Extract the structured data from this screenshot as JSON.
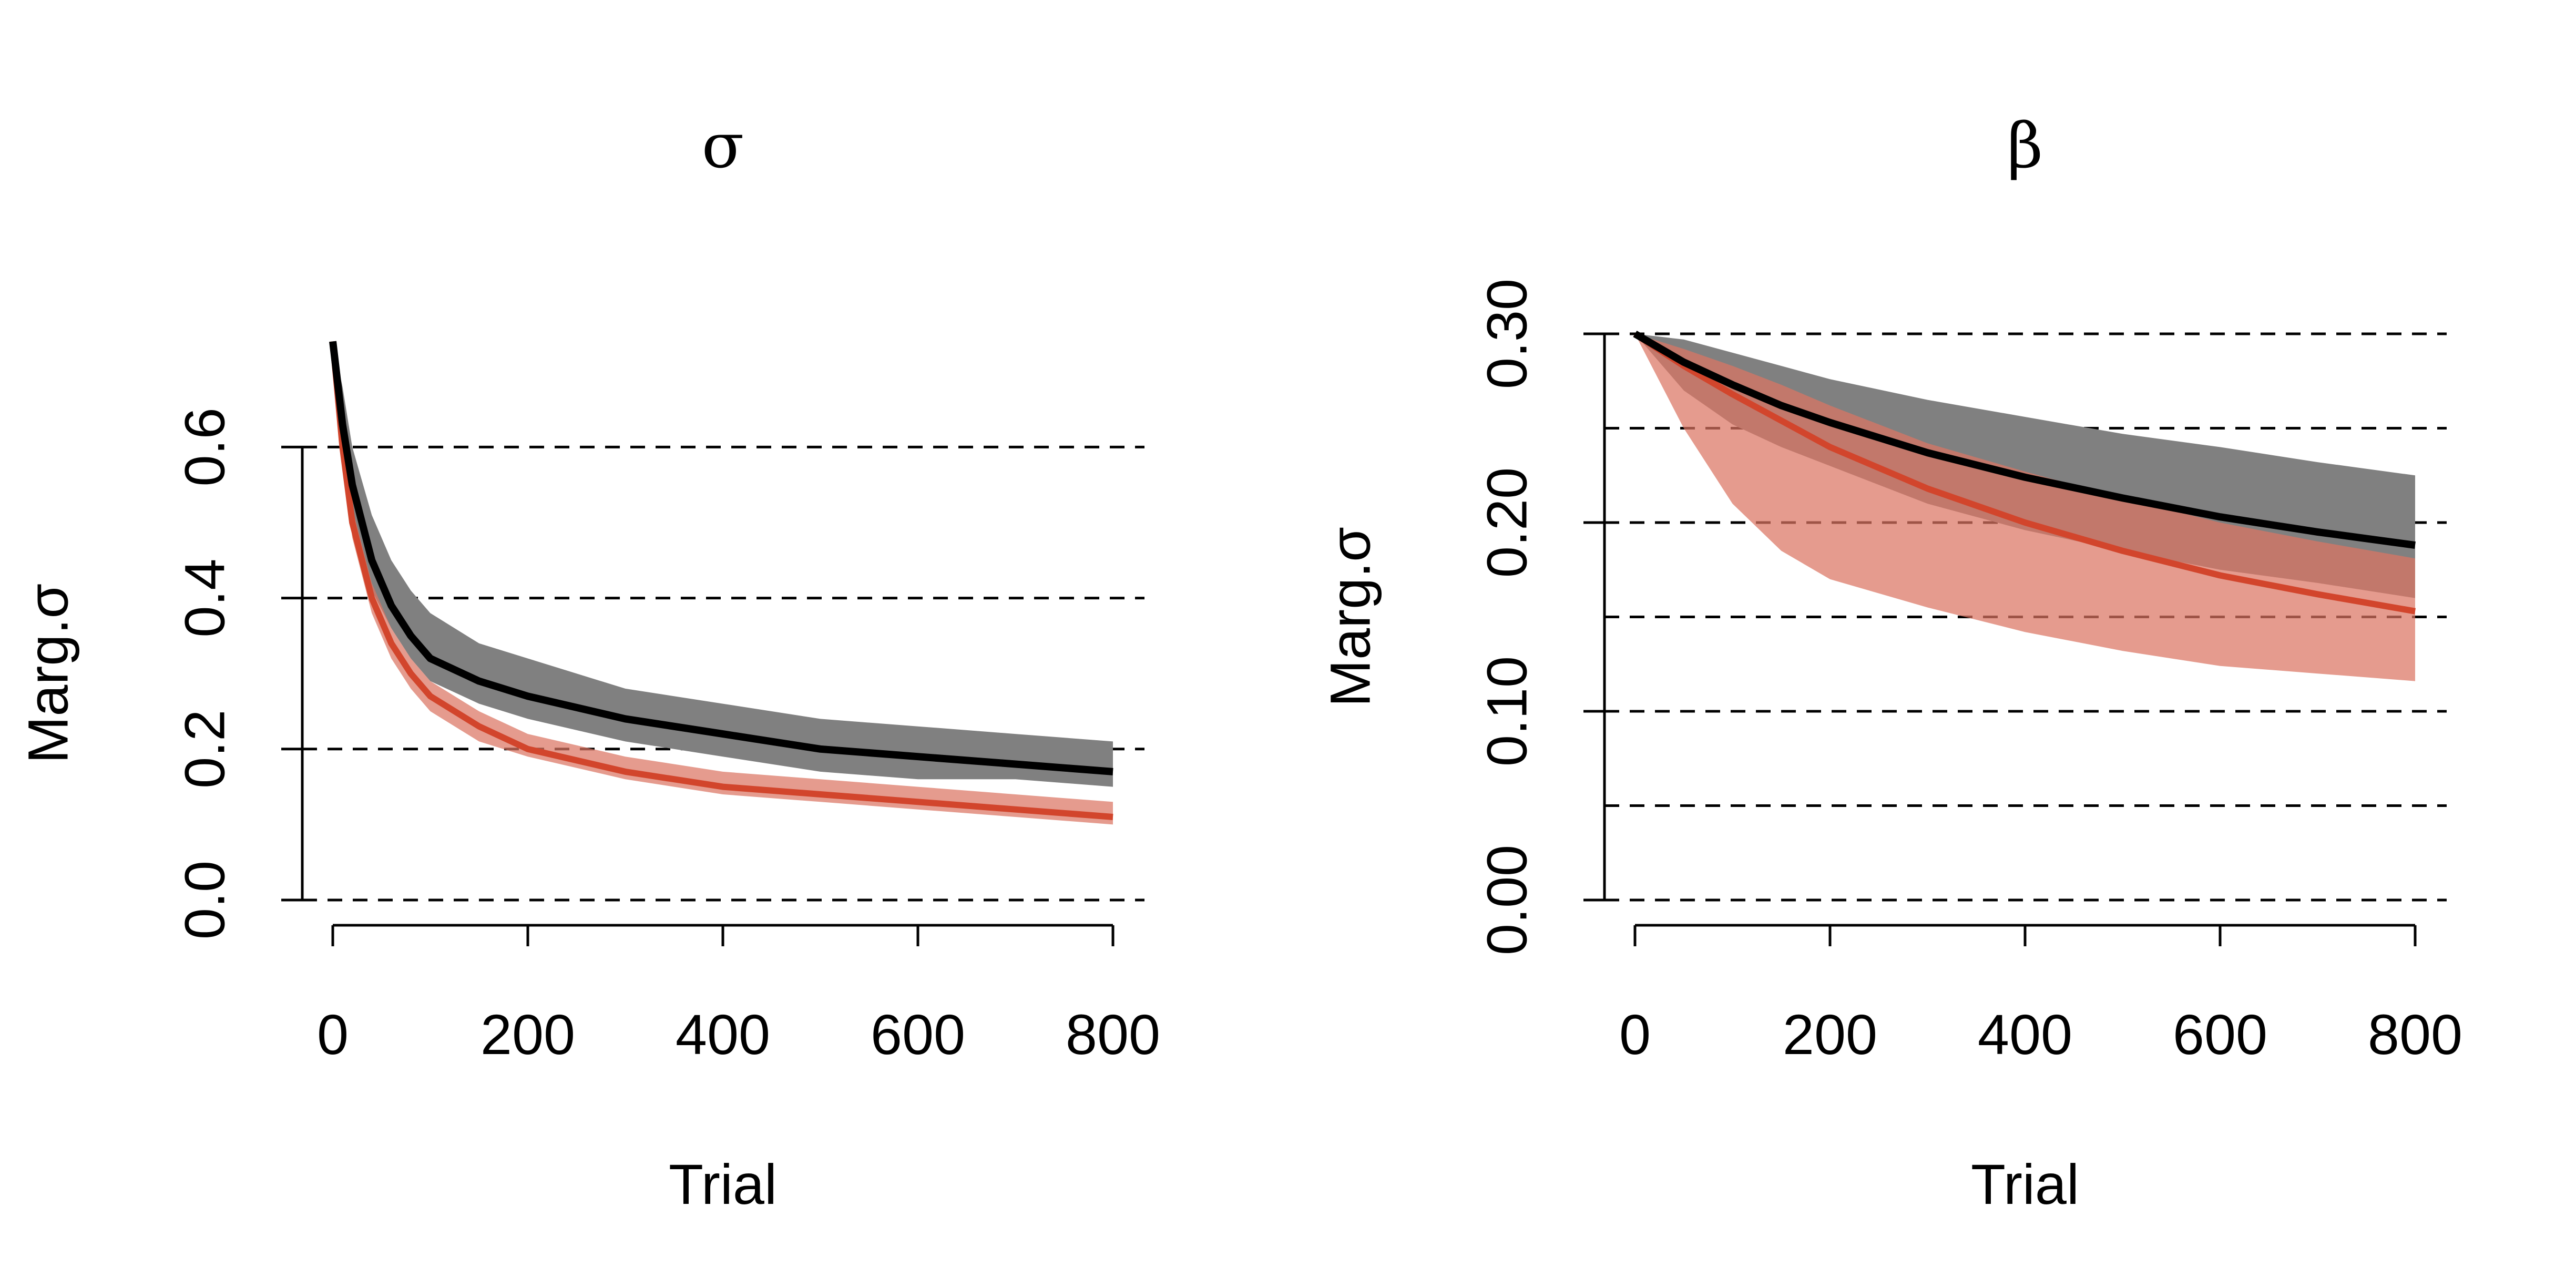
{
  "chart_data": [
    {
      "type": "line",
      "title": "σ",
      "xlabel": "Trial",
      "ylabel": "Marg.σ",
      "xlim": [
        0,
        800
      ],
      "ylim": [
        0,
        0.75
      ],
      "xticks": [
        0,
        200,
        400,
        600,
        800
      ],
      "xtick_labels": [
        "0",
        "200",
        "400",
        "600",
        "800"
      ],
      "yticks": [
        0,
        0.2,
        0.4,
        0.6
      ],
      "ytick_labels": [
        "0.0",
        "0.2",
        "0.4",
        "0.6"
      ],
      "reference_lines": [
        0,
        0.2,
        0.4,
        0.6
      ],
      "grid": false,
      "legend": "none",
      "x": [
        0,
        10,
        20,
        40,
        60,
        80,
        100,
        150,
        200,
        300,
        400,
        500,
        600,
        700,
        800
      ],
      "series": [
        {
          "color": "#000000",
          "band_color": "#808080",
          "values": [
            0.74,
            0.63,
            0.55,
            0.45,
            0.39,
            0.35,
            0.32,
            0.29,
            0.27,
            0.24,
            0.22,
            0.2,
            0.19,
            0.18,
            0.17
          ],
          "upper": [
            0.74,
            0.68,
            0.6,
            0.51,
            0.45,
            0.41,
            0.38,
            0.34,
            0.32,
            0.28,
            0.26,
            0.24,
            0.23,
            0.22,
            0.21
          ],
          "lower": [
            0.74,
            0.6,
            0.51,
            0.41,
            0.36,
            0.32,
            0.29,
            0.26,
            0.24,
            0.21,
            0.19,
            0.17,
            0.16,
            0.16,
            0.15
          ]
        },
        {
          "color": "#D2452C",
          "band_color": "#DB7463",
          "values": [
            0.74,
            0.6,
            0.5,
            0.4,
            0.34,
            0.3,
            0.27,
            0.23,
            0.2,
            0.17,
            0.15,
            0.14,
            0.13,
            0.12,
            0.11
          ],
          "upper": [
            0.74,
            0.61,
            0.52,
            0.42,
            0.36,
            0.32,
            0.29,
            0.25,
            0.22,
            0.19,
            0.17,
            0.16,
            0.15,
            0.14,
            0.13
          ],
          "lower": [
            0.74,
            0.58,
            0.48,
            0.38,
            0.32,
            0.28,
            0.25,
            0.21,
            0.19,
            0.16,
            0.14,
            0.13,
            0.12,
            0.11,
            0.1
          ]
        }
      ]
    },
    {
      "type": "line",
      "title": "β",
      "xlabel": "Trial",
      "ylabel": "Marg.σ",
      "xlim": [
        0,
        800
      ],
      "ylim": [
        0,
        0.3
      ],
      "xticks": [
        0,
        200,
        400,
        600,
        800
      ],
      "xtick_labels": [
        "0",
        "200",
        "400",
        "600",
        "800"
      ],
      "yticks": [
        0,
        0.1,
        0.2,
        0.3
      ],
      "ytick_labels": [
        "0.00",
        "0.10",
        "0.20",
        "0.30"
      ],
      "reference_lines": [
        0,
        0.05,
        0.1,
        0.15,
        0.2,
        0.25,
        0.3
      ],
      "grid": false,
      "legend": "none",
      "x": [
        0,
        50,
        100,
        150,
        200,
        300,
        400,
        500,
        600,
        700,
        800
      ],
      "series": [
        {
          "color": "#000000",
          "band_color": "#808080",
          "values": [
            0.3,
            0.285,
            0.273,
            0.262,
            0.253,
            0.237,
            0.224,
            0.213,
            0.203,
            0.195,
            0.188
          ],
          "upper": [
            0.3,
            0.297,
            0.29,
            0.283,
            0.276,
            0.265,
            0.256,
            0.247,
            0.24,
            0.232,
            0.225
          ],
          "lower": [
            0.3,
            0.27,
            0.252,
            0.24,
            0.23,
            0.21,
            0.196,
            0.185,
            0.175,
            0.168,
            0.16
          ]
        },
        {
          "color": "#D2452C",
          "band_color": "#DB7463",
          "values": [
            0.3,
            0.283,
            0.268,
            0.254,
            0.24,
            0.218,
            0.2,
            0.185,
            0.172,
            0.162,
            0.153
          ],
          "upper": [
            0.3,
            0.292,
            0.283,
            0.273,
            0.262,
            0.242,
            0.227,
            0.213,
            0.2,
            0.19,
            0.181
          ],
          "lower": [
            0.3,
            0.25,
            0.21,
            0.185,
            0.17,
            0.155,
            0.142,
            0.132,
            0.124,
            0.12,
            0.116
          ]
        }
      ]
    }
  ]
}
